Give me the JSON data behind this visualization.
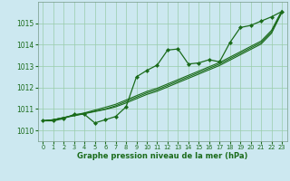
{
  "background_color": "#cce8f0",
  "plot_bg_color": "#cce8f0",
  "grid_color": "#99ccaa",
  "line_color": "#1a6b1a",
  "marker_color": "#1a6b1a",
  "xlabel": "Graphe pression niveau de la mer (hPa)",
  "ylim": [
    1009.5,
    1016.0
  ],
  "xlim": [
    -0.5,
    23.5
  ],
  "yticks": [
    1010,
    1011,
    1012,
    1013,
    1014,
    1015
  ],
  "xticks": [
    0,
    1,
    2,
    3,
    4,
    5,
    6,
    7,
    8,
    9,
    10,
    11,
    12,
    13,
    14,
    15,
    16,
    17,
    18,
    19,
    20,
    21,
    22,
    23
  ],
  "main_series": [
    1010.45,
    1010.45,
    1010.55,
    1010.75,
    1010.75,
    1010.35,
    1010.5,
    1010.65,
    1011.1,
    1012.5,
    1012.8,
    1013.05,
    1013.75,
    1013.8,
    1013.1,
    1013.15,
    1013.3,
    1013.2,
    1014.1,
    1014.8,
    1014.9,
    1015.1,
    1015.3,
    1015.55
  ],
  "smooth_lines": [
    [
      1010.45,
      1010.5,
      1010.6,
      1010.7,
      1010.8,
      1010.9,
      1011.0,
      1011.15,
      1011.35,
      1011.55,
      1011.75,
      1011.9,
      1012.1,
      1012.3,
      1012.5,
      1012.7,
      1012.9,
      1013.1,
      1013.35,
      1013.6,
      1013.85,
      1014.1,
      1014.6,
      1015.55
    ],
    [
      1010.45,
      1010.5,
      1010.6,
      1010.72,
      1010.82,
      1010.95,
      1011.08,
      1011.22,
      1011.42,
      1011.62,
      1011.82,
      1011.97,
      1012.17,
      1012.37,
      1012.57,
      1012.77,
      1012.97,
      1013.17,
      1013.42,
      1013.67,
      1013.92,
      1014.17,
      1014.67,
      1015.6
    ],
    [
      1010.45,
      1010.5,
      1010.6,
      1010.68,
      1010.78,
      1010.88,
      1010.98,
      1011.1,
      1011.28,
      1011.48,
      1011.68,
      1011.83,
      1012.03,
      1012.23,
      1012.43,
      1012.63,
      1012.83,
      1013.03,
      1013.28,
      1013.53,
      1013.78,
      1014.03,
      1014.53,
      1015.5
    ]
  ]
}
